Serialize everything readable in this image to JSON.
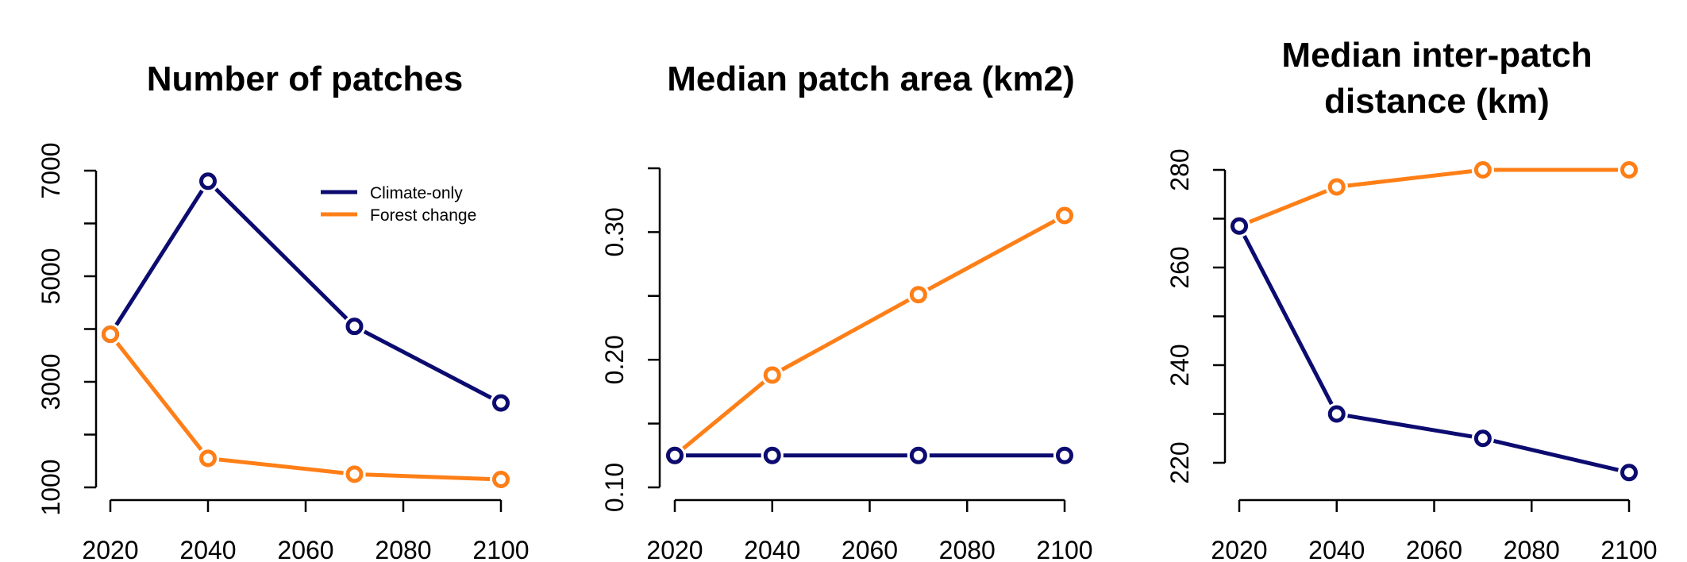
{
  "colors": {
    "climate_only": "#0b0b70",
    "forest_change": "#ff7f17",
    "axis": "#000000",
    "background": "#ffffff"
  },
  "chart_data": [
    {
      "type": "line",
      "title": "Number of patches",
      "title_lines": [
        "Number of patches"
      ],
      "xlabel": "",
      "ylabel": "",
      "x": [
        2020,
        2040,
        2070,
        2100
      ],
      "xlim": [
        2017,
        2105
      ],
      "xticks": [
        2020,
        2040,
        2060,
        2080,
        2100
      ],
      "xtick_labels": [
        "2020",
        "2040",
        "2060",
        "2080",
        "2100"
      ],
      "ylim": [
        790,
        7200
      ],
      "yticks": [
        1000,
        2000,
        3000,
        4000,
        5000,
        6000,
        7000
      ],
      "ytick_labels": [
        "1000",
        "",
        "3000",
        "",
        "5000",
        "",
        "7000"
      ],
      "grid": false,
      "legend": {
        "position": "top-right",
        "entries": [
          "Climate-only",
          "Forest change"
        ]
      },
      "series": [
        {
          "name": "Climate-only",
          "color_key": "climate_only",
          "values": [
            3900,
            6800,
            4050,
            2600
          ]
        },
        {
          "name": "Forest change",
          "color_key": "forest_change",
          "values": [
            3900,
            1550,
            1250,
            1150
          ]
        }
      ]
    },
    {
      "type": "line",
      "title": "Median patch area (km2)",
      "title_lines": [
        "Median patch area (km2)"
      ],
      "xlabel": "",
      "ylabel": "",
      "x": [
        2020,
        2040,
        2070,
        2100
      ],
      "xlim": [
        2017,
        2105
      ],
      "xticks": [
        2020,
        2040,
        2060,
        2080,
        2100
      ],
      "xtick_labels": [
        "2020",
        "2040",
        "2060",
        "2080",
        "2100"
      ],
      "ylim": [
        0.092,
        0.355
      ],
      "yticks": [
        0.1,
        0.15,
        0.2,
        0.25,
        0.3,
        0.35
      ],
      "ytick_labels": [
        "0.10",
        "",
        "0.20",
        "",
        "0.30",
        ""
      ],
      "grid": false,
      "legend": null,
      "series": [
        {
          "name": "Climate-only",
          "color_key": "climate_only",
          "values": [
            0.125,
            0.125,
            0.125,
            0.125
          ]
        },
        {
          "name": "Forest change",
          "color_key": "forest_change",
          "values": [
            0.125,
            0.188,
            0.251,
            0.313
          ]
        }
      ]
    },
    {
      "type": "line",
      "title": "Median inter-patch distance (km)",
      "title_lines": [
        "Median inter-patch",
        "distance (km)"
      ],
      "xlabel": "",
      "ylabel": "",
      "x": [
        2020,
        2040,
        2070,
        2100
      ],
      "xlim": [
        2017,
        2105
      ],
      "xticks": [
        2020,
        2040,
        2060,
        2080,
        2100
      ],
      "xtick_labels": [
        "2020",
        "2040",
        "2060",
        "2080",
        "2100"
      ],
      "ylim": [
        214.7,
        282
      ],
      "yticks": [
        220,
        230,
        240,
        250,
        260,
        270,
        280
      ],
      "ytick_labels": [
        "220",
        "",
        "240",
        "",
        "260",
        "",
        "280"
      ],
      "grid": false,
      "legend": null,
      "series": [
        {
          "name": "Climate-only",
          "color_key": "climate_only",
          "values": [
            268.5,
            230,
            225,
            218
          ]
        },
        {
          "name": "Forest change",
          "color_key": "forest_change",
          "values": [
            268.5,
            276.5,
            280,
            280
          ]
        }
      ]
    }
  ]
}
